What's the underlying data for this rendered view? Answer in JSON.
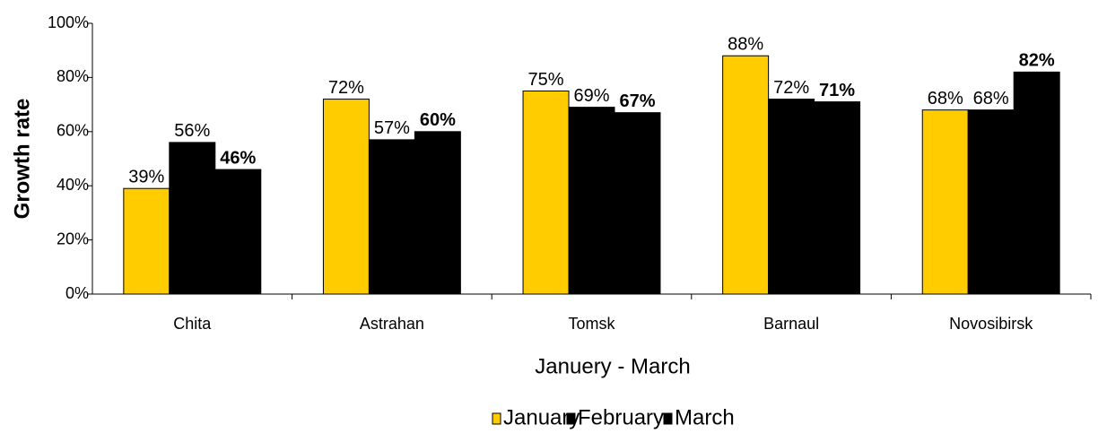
{
  "chart_data": {
    "type": "bar",
    "categories": [
      "Chita",
      "Astrahan",
      "Tomsk",
      "Barnaul",
      "Novosibirsk"
    ],
    "series": [
      {
        "name": "January",
        "color": "#ffcc00",
        "values": [
          39,
          72,
          75,
          88,
          68
        ],
        "value_labels": [
          "39%",
          "72%",
          "75%",
          "88%",
          "68%"
        ],
        "bold_labels": false
      },
      {
        "name": "February",
        "color": "#000000",
        "values": [
          56,
          57,
          69,
          72,
          68
        ],
        "value_labels": [
          "56%",
          "57%",
          "69%",
          "72%",
          "68%"
        ],
        "bold_labels": false
      },
      {
        "name": "March",
        "color": "#000000",
        "values": [
          46,
          60,
          67,
          71,
          82
        ],
        "value_labels": [
          "46%",
          "60%",
          "67%",
          "71%",
          "82%"
        ],
        "bold_labels": true
      }
    ],
    "xlabel": "Januery - March",
    "ylabel": "Growth rate",
    "ylim": [
      0,
      100
    ],
    "yticks": [
      {
        "value": 0,
        "label": "0%"
      },
      {
        "value": 20,
        "label": "20%"
      },
      {
        "value": 40,
        "label": "40%"
      },
      {
        "value": 60,
        "label": "60%"
      },
      {
        "value": 80,
        "label": "80%"
      },
      {
        "value": 100,
        "label": "100%"
      }
    ],
    "grid": false,
    "legend": "bottom"
  }
}
